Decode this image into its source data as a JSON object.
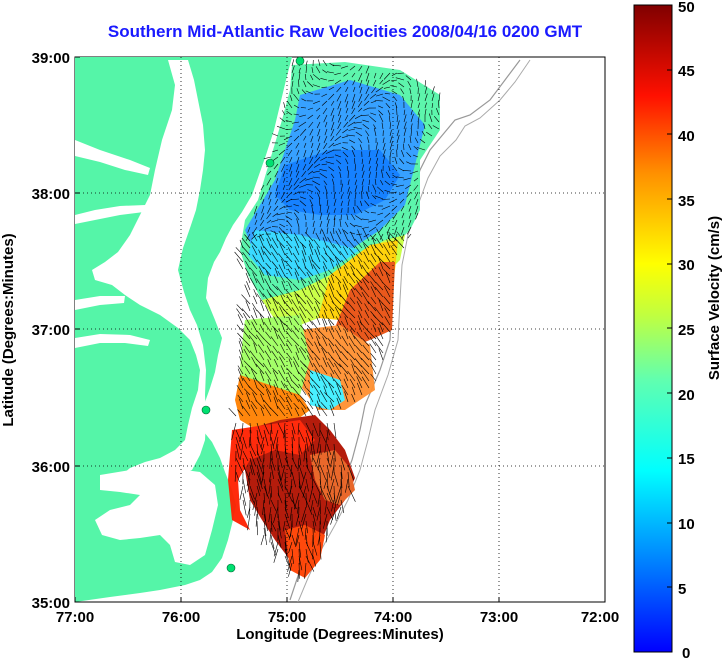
{
  "title": "Southern Mid-Atlantic Raw Velocities 2008/04/16 0200 GMT",
  "x_axis": {
    "label": "Longitude (Degrees:Minutes)",
    "ticks": [
      "77:00",
      "76:00",
      "75:00",
      "74:00",
      "73:00",
      "72:00"
    ]
  },
  "y_axis": {
    "label": "Latitude (Degrees:Minutes)",
    "ticks": [
      "39:00",
      "38:00",
      "37:00",
      "36:00",
      "35:00"
    ]
  },
  "colorbar": {
    "label": "Surface Velocity (cm/s)",
    "ticks": [
      "50",
      "45",
      "40",
      "35",
      "30",
      "25",
      "20",
      "15",
      "10",
      "5",
      "0"
    ],
    "min": 0,
    "max": 50,
    "colormap": "jet"
  },
  "colors": {
    "title": "#1a1aff",
    "land": "#55f5a8",
    "water": "#ffffff",
    "vectors": "#000000"
  }
}
